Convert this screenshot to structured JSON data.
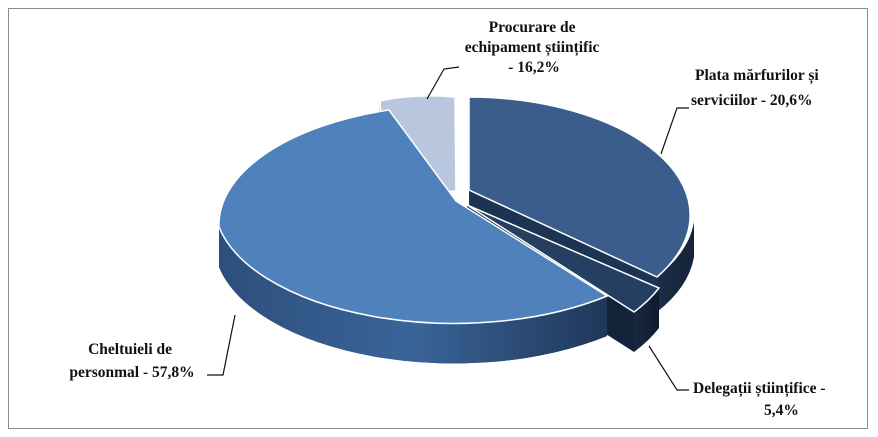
{
  "chart_data": {
    "type": "pie",
    "title": "",
    "slices": [
      {
        "label": "Plata mărfurilor și serviciilor - 20,6%",
        "label_lines": [
          "Plata mărfurilor și",
          "serviciilor -  20,6%"
        ],
        "value": 20.6,
        "color": "#3b5d8c"
      },
      {
        "label": "Delegații științifice - 5,4%",
        "label_lines": [
          "Delegații științifice -",
          "5,4%"
        ],
        "value": 5.4,
        "color": "#253f63"
      },
      {
        "label": "Cheltuieli de personmal - 57,8%",
        "label_lines": [
          "Cheltuieli de",
          "personmal - 57,8%"
        ],
        "value": 57.8,
        "color": "#4f81bd"
      },
      {
        "label": "Procurare de echipament științific - 16,2%",
        "label_lines": [
          "Procurare de",
          "echipament științific",
          "- 16,2%"
        ],
        "value": 16.2,
        "color": "#b9c7de"
      }
    ],
    "legend": "none",
    "style": "3d-exploded"
  }
}
